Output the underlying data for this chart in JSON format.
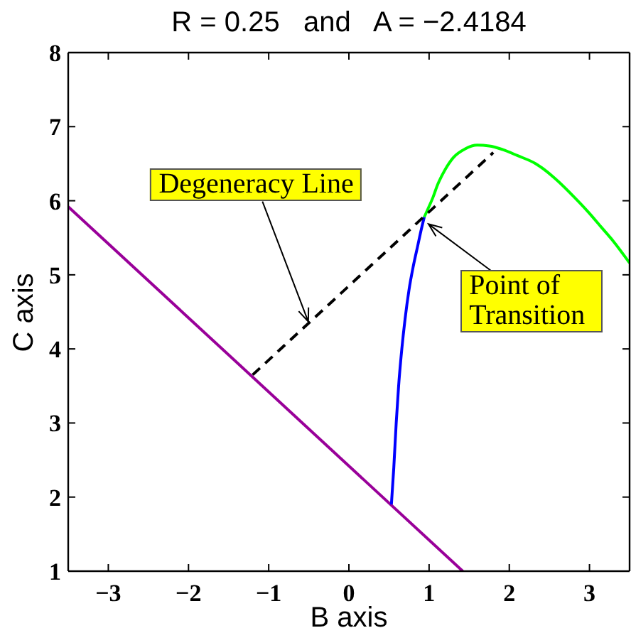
{
  "chart_data": {
    "type": "line",
    "title": "R = 0.25   and   A = −2.4184",
    "xlabel": "B axis",
    "ylabel": "C axis",
    "xlim": [
      -3.5,
      3.5
    ],
    "xticks": [
      -3,
      -2,
      -1,
      0,
      1,
      2,
      3
    ],
    "ylim": [
      1,
      8
    ],
    "yticks": [
      1,
      2,
      3,
      4,
      5,
      6,
      7,
      8
    ],
    "series": [
      {
        "color": "#990099",
        "x": [
          -3.5,
          1.42
        ],
        "values": [
          5.92,
          1.0
        ]
      },
      {
        "color": "#0000ff",
        "x": [
          0.53,
          0.56,
          0.59,
          0.62,
          0.66,
          0.7,
          0.75,
          0.8,
          0.86,
          0.9,
          0.94
        ],
        "values": [
          1.9,
          2.4,
          3.0,
          3.5,
          4.0,
          4.4,
          4.8,
          5.1,
          5.4,
          5.6,
          5.78
        ]
      },
      {
        "color": "#00ff00",
        "x": [
          0.94,
          0.99,
          1.05,
          1.1,
          1.2,
          1.3,
          1.45,
          1.6,
          1.75,
          1.92,
          2.1,
          2.33,
          2.55,
          2.8,
          3.0,
          3.15,
          3.3,
          3.5
        ],
        "values": [
          5.78,
          5.9,
          6.05,
          6.2,
          6.42,
          6.58,
          6.7,
          6.75,
          6.74,
          6.69,
          6.61,
          6.5,
          6.32,
          6.06,
          5.83,
          5.64,
          5.45,
          5.16
        ]
      },
      {
        "color": "#000000",
        "line_style": "dashed",
        "x": [
          -1.2,
          1.8
        ],
        "values": [
          3.65,
          6.65
        ]
      }
    ],
    "annotations": [
      {
        "text": "Degeneracy Line",
        "x": -0.5,
        "y": 4.35
      },
      {
        "text": "Point of Transition",
        "x": 0.95,
        "y": 5.72
      }
    ]
  }
}
